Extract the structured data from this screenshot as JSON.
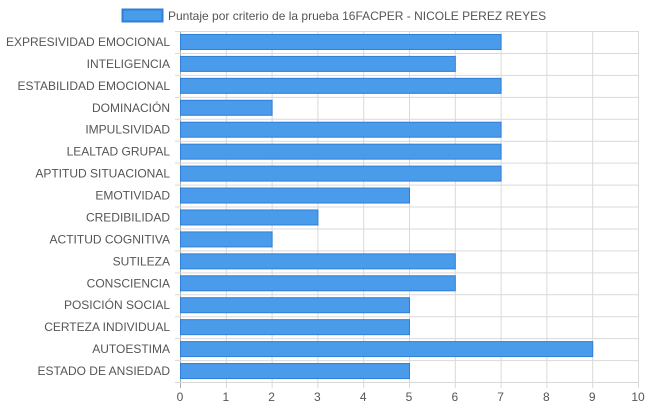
{
  "chart_data": {
    "type": "bar",
    "orientation": "horizontal",
    "legend_position": "top",
    "grid": true,
    "categories": [
      "EXPRESIVIDAD EMOCIONAL",
      "INTELIGENCIA",
      "ESTABILIDAD EMOCIONAL",
      "DOMINACIÓN",
      "IMPULSIVIDAD",
      "LEALTAD GRUPAL",
      "APTITUD SITUACIONAL",
      "EMOTIVIDAD",
      "CREDIBILIDAD",
      "ACTITUD COGNITIVA",
      "SUTILEZA",
      "CONSCIENCIA",
      "POSICIÓN SOCIAL",
      "CERTEZA INDIVIDUAL",
      "AUTOESTIMA",
      "ESTADO DE ANSIEDAD"
    ],
    "series": [
      {
        "name": "Puntaje por criterio de la prueba 16FACPER - NICOLE PEREZ REYES",
        "values": [
          7,
          6,
          7,
          2,
          7,
          7,
          7,
          5,
          3,
          2,
          6,
          6,
          5,
          5,
          9,
          5
        ],
        "color": "#4a9bea",
        "border_color": "#2f7fd8"
      }
    ],
    "xlim": [
      0,
      10
    ],
    "xticks": [
      "0",
      "1",
      "2",
      "3",
      "4",
      "5",
      "6",
      "7",
      "8",
      "9",
      "10"
    ],
    "grid_color": "#d9d9d9",
    "axis_color": "#a9a9a9",
    "label_color": "#555555"
  }
}
